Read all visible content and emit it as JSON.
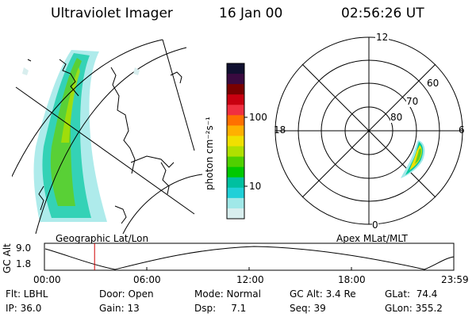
{
  "header": {
    "instrument": "Ultraviolet Imager",
    "date": "16 Jan 00",
    "time": "02:56:26 UT"
  },
  "colorbar": {
    "unit_label": "photon cm⁻²s⁻¹",
    "ticks": [
      "100",
      "10"
    ],
    "colors": [
      "#101030",
      "#3a0a40",
      "#7a0000",
      "#c80010",
      "#f03040",
      "#ff7000",
      "#ffb000",
      "#f0e000",
      "#b0e000",
      "#50d000",
      "#00c800",
      "#00c0a0",
      "#20d0d8",
      "#a0e8e8",
      "#d8eeee"
    ]
  },
  "polar": {
    "mlt_labels": {
      "top": "12",
      "left": "18",
      "right": "6",
      "bottom": "0"
    },
    "lat_labels": [
      "60",
      "70",
      "80"
    ]
  },
  "timeline": {
    "left_label": "Geographic Lat/Lon",
    "right_label": "Apex MLat/MLT",
    "axis_label": "GC Alt",
    "y_max": "9.0",
    "y_min": "1.8",
    "x_ticks": [
      "00:00",
      "06:00",
      "12:00",
      "18:00",
      "23:59"
    ],
    "current_time_hours": 2.94
  },
  "footer": {
    "row1": [
      {
        "text": "Flt: LBHL"
      },
      {
        "text": "Door: Open"
      },
      {
        "text": "Mode: Normal"
      },
      {
        "text": "GC Alt: 3.4 Re"
      },
      {
        "text": "GLat:  74.4"
      }
    ],
    "row2": [
      {
        "text": "IP: 36.0"
      },
      {
        "text": "Gain: 13"
      },
      {
        "text": "Dsp:     7.1"
      },
      {
        "text": "Seq: 39"
      },
      {
        "text": "GLon: 355.2"
      }
    ]
  }
}
